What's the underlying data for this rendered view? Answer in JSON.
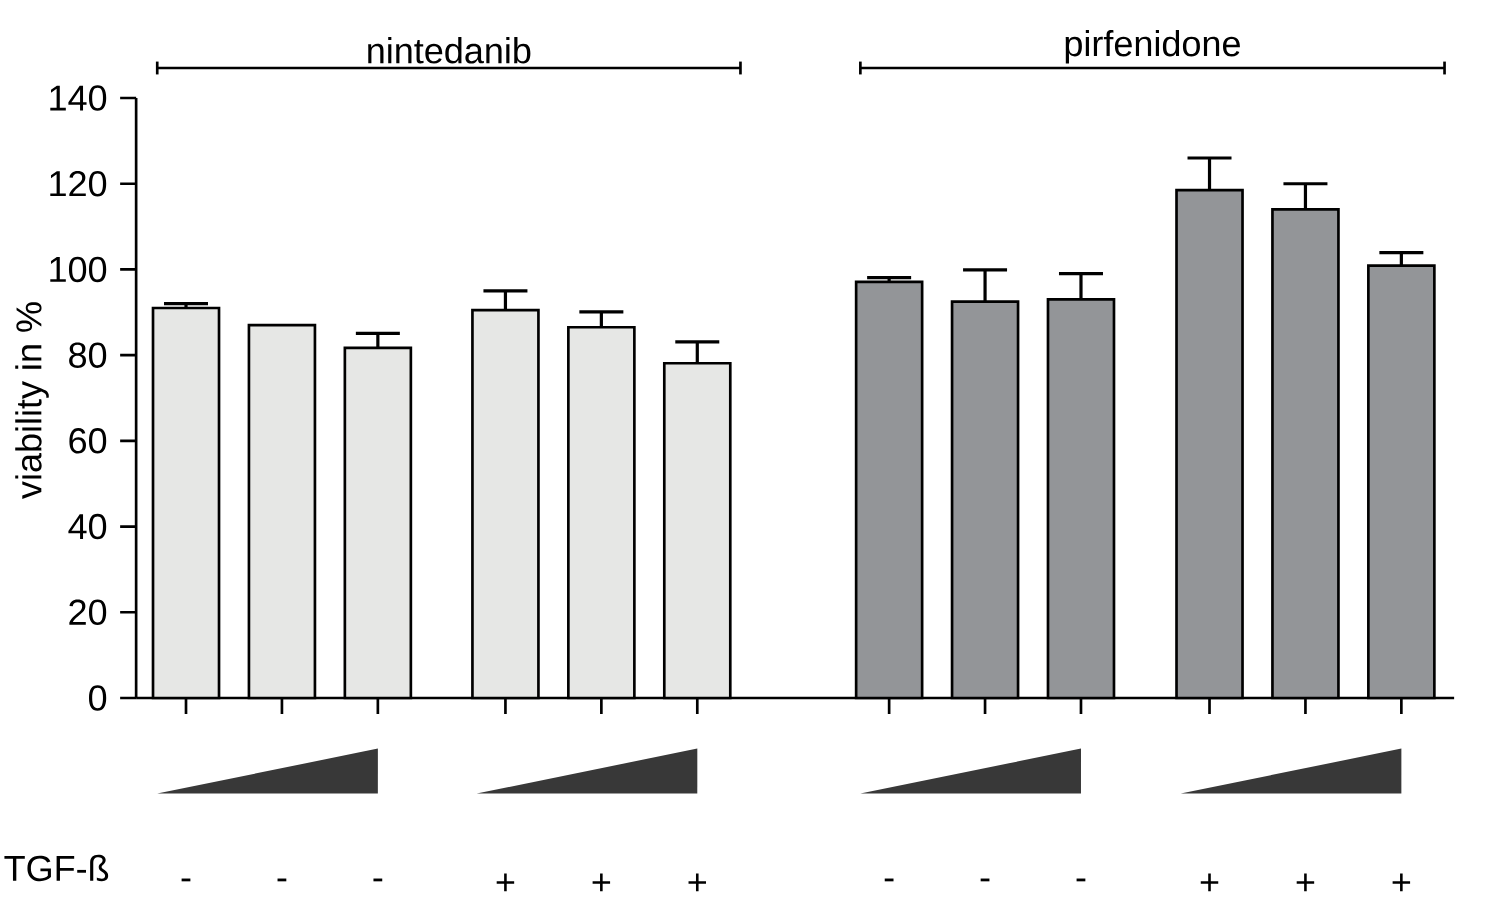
{
  "chart_data": {
    "type": "bar",
    "ylabel": "viability in %",
    "xlabel": "TGF-ß",
    "categories": [
      "-",
      "-",
      "-",
      "+",
      "+",
      "+",
      "-",
      "-",
      "-",
      "+",
      "+",
      "+"
    ],
    "series": [
      {
        "color": "#e6e7e5",
        "values": [
          91,
          87,
          81.7,
          null,
          null,
          null,
          null,
          null,
          null,
          null,
          null,
          null
        ],
        "errors": [
          1,
          null,
          3.4,
          null,
          null,
          null,
          null,
          null,
          null,
          null,
          null,
          null
        ]
      },
      {
        "color": "#e6e7e5",
        "values": [
          null,
          null,
          null,
          90.5,
          86.5,
          78.1,
          null,
          null,
          null,
          null,
          null,
          null
        ],
        "errors": [
          null,
          null,
          null,
          4.5,
          3.6,
          5,
          null,
          null,
          null,
          null,
          null,
          null
        ]
      },
      {
        "color": "#939598",
        "values": [
          null,
          null,
          null,
          null,
          null,
          null,
          97.1,
          92.5,
          93,
          null,
          null,
          null
        ],
        "errors": [
          null,
          null,
          null,
          null,
          null,
          null,
          1,
          7.4,
          6,
          null,
          null,
          null
        ]
      },
      {
        "color": "#939598",
        "values": [
          null,
          null,
          null,
          null,
          null,
          null,
          null,
          null,
          null,
          118.5,
          114,
          100.9
        ],
        "errors": [
          null,
          null,
          null,
          null,
          null,
          null,
          null,
          null,
          null,
          7.5,
          6,
          3
        ]
      }
    ],
    "annotations": [
      "nintedanib",
      "pirfenidone"
    ],
    "ylim": [
      0,
      140
    ],
    "yticks": [
      0,
      20,
      40,
      60,
      80,
      100,
      120,
      140
    ]
  }
}
